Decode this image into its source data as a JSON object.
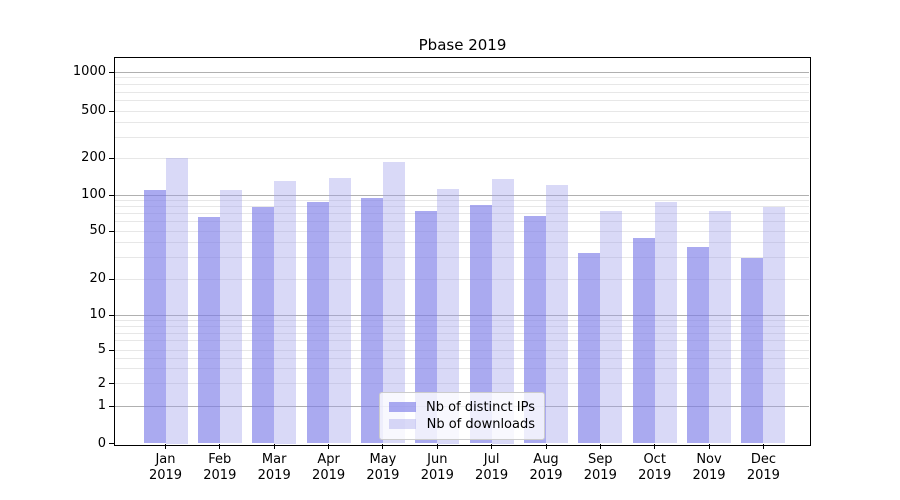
{
  "chart_data": {
    "type": "bar",
    "title": "Pbase 2019",
    "categories": [
      "Jan",
      "Feb",
      "Mar",
      "Apr",
      "May",
      "Jun",
      "Jul",
      "Aug",
      "Sep",
      "Oct",
      "Nov",
      "Dec"
    ],
    "x_year_label": "2019",
    "series": [
      {
        "name": "Nb of distinct IPs",
        "color": "rgba(125,125,232,0.65)",
        "values": [
          110,
          65,
          80,
          88,
          95,
          73,
          82,
          67,
          33,
          44,
          37,
          30
        ]
      },
      {
        "name": "Nb of downloads",
        "color": "rgba(160,160,235,0.40)",
        "values": [
          200,
          110,
          130,
          138,
          187,
          113,
          135,
          121,
          74,
          87,
          73,
          80
        ]
      }
    ],
    "yscale": "symlog",
    "yticks": [
      0,
      1,
      2,
      5,
      10,
      20,
      50,
      100,
      200,
      500,
      1000
    ],
    "ylim": [
      0,
      1400
    ],
    "xlabel": "",
    "ylabel": "",
    "grid": "horizontal",
    "legend_position": "lower center",
    "colors": {
      "major_grid": "#b0b0b0",
      "minor_grid": "#e7e7e7",
      "axis": "#000000",
      "background": "#ffffff"
    }
  }
}
